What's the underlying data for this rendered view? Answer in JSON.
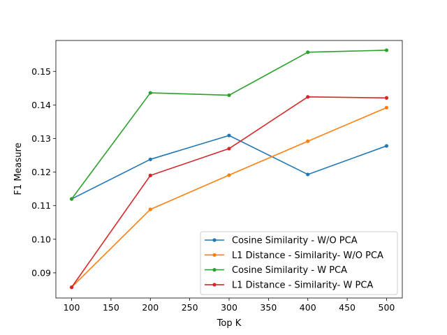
{
  "chart_data": {
    "type": "line",
    "title": "",
    "xlabel": "Top K",
    "ylabel": "F1 Measure",
    "x": [
      100,
      200,
      300,
      400,
      500
    ],
    "xlim": [
      80,
      520
    ],
    "ylim": [
      0.0825,
      0.1592
    ],
    "xticks": [
      100,
      150,
      200,
      250,
      300,
      350,
      400,
      450,
      500
    ],
    "yticks": [
      0.09,
      0.1,
      0.11,
      0.12,
      0.13,
      0.14,
      0.15
    ],
    "ytick_labels": [
      "0.09",
      "0.10",
      "0.11",
      "0.12",
      "0.13",
      "0.14",
      "0.15"
    ],
    "grid": false,
    "legend_position": "lower-right",
    "series": [
      {
        "name": "Cosine Similarity - W/O PCA",
        "color": "#1f77b4",
        "values": [
          0.112,
          0.1238,
          0.1309,
          0.1193,
          0.1278
        ]
      },
      {
        "name": "L1 Distance - Similarity- W/O PCA",
        "color": "#ff7f0e",
        "values": [
          0.0857,
          0.1089,
          0.1191,
          0.1292,
          0.1392
        ]
      },
      {
        "name": "Cosine Similarity - W PCA",
        "color": "#2ca02c",
        "values": [
          0.112,
          0.1436,
          0.1429,
          0.1557,
          0.1563
        ]
      },
      {
        "name": "L1 Distance - Similarity- W PCA",
        "color": "#d62728",
        "values": [
          0.0857,
          0.119,
          0.127,
          0.1424,
          0.1421
        ]
      }
    ]
  }
}
